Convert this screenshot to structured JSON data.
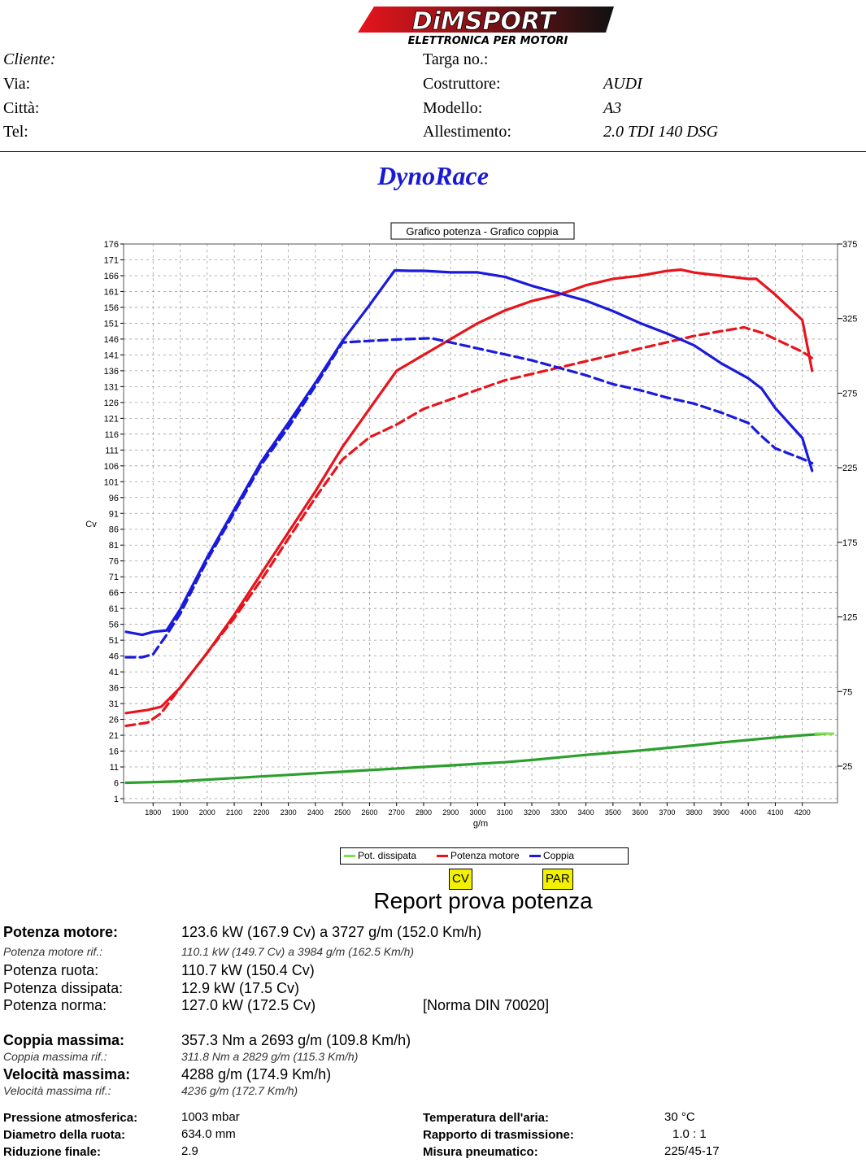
{
  "logo": {
    "brand": "DiMSPORT",
    "tagline": "ELETTRONICA PER MOTORI"
  },
  "header": {
    "left": [
      {
        "label": "Cliente:",
        "value": ""
      },
      {
        "label": "Via:",
        "value": ""
      },
      {
        "label": "Città:",
        "value": ""
      },
      {
        "label": "Tel:",
        "value": ""
      }
    ],
    "right": [
      {
        "label": "Targa no.:",
        "value": ""
      },
      {
        "label": "Costruttore:",
        "value": "AUDI"
      },
      {
        "label": "Modello:",
        "value": "A3"
      },
      {
        "label": "Allestimento:",
        "value": "2.0 TDI 140 DSG"
      }
    ]
  },
  "dyno_title": "DynoRace",
  "chart_data": {
    "type": "line",
    "title": "Grafico potenza - Grafico coppia",
    "xlabel": "g/m",
    "ylabel": "Cv",
    "xlim": [
      1700,
      4300
    ],
    "ylim": [
      1,
      176
    ],
    "y2lim": [
      0,
      375
    ],
    "xticks": [
      1800,
      1900,
      2000,
      2100,
      2200,
      2300,
      2400,
      2500,
      2600,
      2700,
      2800,
      2900,
      3000,
      3100,
      3200,
      3300,
      3400,
      3500,
      3600,
      3700,
      3800,
      3900,
      4000,
      4100,
      4200
    ],
    "yticks": [
      176,
      171,
      166,
      161,
      156,
      151,
      146,
      141,
      136,
      131,
      126,
      121,
      116,
      111,
      106,
      101,
      96,
      91,
      86,
      81,
      76,
      71,
      66,
      61,
      56,
      51,
      46,
      41,
      36,
      31,
      26,
      21,
      16,
      11,
      6,
      1
    ],
    "y2ticks": [
      375,
      325,
      275,
      225,
      175,
      125,
      75,
      25
    ],
    "grid": true,
    "legend": [
      "Pot. dissipata",
      "Potenza motore",
      "Coppia"
    ],
    "series": [
      {
        "name": "Pot. dissipata",
        "color": "#2ca02c",
        "axis": "left",
        "style": "solid",
        "x": [
          1700,
          1800,
          1900,
          2000,
          2100,
          2200,
          2300,
          2400,
          2500,
          2600,
          2700,
          2800,
          2900,
          3000,
          3100,
          3200,
          3300,
          3400,
          3500,
          3600,
          3700,
          3800,
          3900,
          4000,
          4100,
          4200,
          4288
        ],
        "y": [
          6,
          6.2,
          6.5,
          7,
          7.5,
          8,
          8.5,
          9,
          9.5,
          10,
          10.5,
          11,
          11.5,
          12,
          12.5,
          13.2,
          14,
          14.8,
          15.5,
          16.2,
          17,
          17.8,
          18.7,
          19.5,
          20.3,
          21,
          21.5
        ]
      },
      {
        "name": "Potenza motore",
        "color": "#e8141c",
        "axis": "left",
        "style": "solid",
        "x": [
          1700,
          1780,
          1830,
          1900,
          2000,
          2100,
          2200,
          2300,
          2400,
          2500,
          2600,
          2700,
          2800,
          2900,
          3000,
          3100,
          3200,
          3300,
          3400,
          3500,
          3600,
          3700,
          3750,
          3800,
          3900,
          4000,
          4030,
          4100,
          4200,
          4236
        ],
        "y": [
          28,
          29,
          30,
          36,
          47,
          59,
          72,
          85,
          98,
          112,
          124,
          136,
          141,
          146,
          151,
          155,
          158,
          160,
          163,
          165,
          166,
          167.5,
          167.9,
          167,
          166,
          165,
          165,
          160,
          152,
          136
        ]
      },
      {
        "name": "Potenza motore rif.",
        "color": "#e8141c",
        "axis": "left",
        "style": "dashed",
        "x": [
          1700,
          1780,
          1830,
          1900,
          2000,
          2100,
          2200,
          2300,
          2400,
          2500,
          2600,
          2700,
          2800,
          2900,
          3000,
          3100,
          3200,
          3300,
          3400,
          3500,
          3600,
          3700,
          3800,
          3900,
          3984,
          4050,
          4100,
          4200,
          4236
        ],
        "y": [
          24,
          25,
          28,
          36,
          47,
          58,
          70,
          83,
          96,
          108,
          115,
          119,
          124,
          127,
          130,
          133,
          135,
          137,
          139,
          141,
          143,
          145,
          147,
          148.5,
          149.7,
          148,
          146,
          142,
          140
        ]
      },
      {
        "name": "Coppia",
        "color": "#1a1adc",
        "axis": "right",
        "style": "solid",
        "x": [
          1700,
          1760,
          1800,
          1850,
          1900,
          2000,
          2100,
          2200,
          2300,
          2400,
          2500,
          2600,
          2693,
          2750,
          2800,
          2900,
          3000,
          3100,
          3200,
          3300,
          3400,
          3500,
          3600,
          3700,
          3800,
          3900,
          4000,
          4050,
          4100,
          4200,
          4236
        ],
        "y": [
          115,
          113,
          115,
          116,
          130,
          165,
          197,
          229,
          255,
          282,
          310,
          334,
          357.3,
          357,
          357,
          356,
          356,
          353,
          347,
          342,
          337,
          330,
          322,
          315,
          307,
          295,
          285,
          278,
          265,
          245,
          223
        ]
      },
      {
        "name": "Coppia rif.",
        "color": "#1a1adc",
        "axis": "right",
        "style": "dashed",
        "x": [
          1700,
          1760,
          1800,
          1850,
          1900,
          2000,
          2100,
          2200,
          2300,
          2400,
          2500,
          2600,
          2700,
          2829,
          2900,
          3000,
          3100,
          3200,
          3300,
          3400,
          3500,
          3600,
          3700,
          3800,
          3900,
          4000,
          4050,
          4100,
          4200,
          4236
        ],
        "y": [
          98,
          98,
          100,
          113,
          127,
          163,
          195,
          227,
          252,
          280,
          309,
          310,
          311,
          311.8,
          309,
          305,
          301,
          297,
          292,
          287,
          281,
          277,
          272,
          268,
          262,
          255,
          246,
          238,
          231,
          228
        ]
      }
    ]
  },
  "legend_labels": {
    "dissipata": "Pot. dissipata",
    "motore": "Potenza motore",
    "coppia": "Coppia"
  },
  "tags": {
    "cv": "CV",
    "par": "PAR"
  },
  "report": {
    "title": "Report prova potenza",
    "potenza_motore_label": "Potenza motore:",
    "potenza_motore": "123.6 kW (167.9 Cv) a 3727 g/m (152.0 Km/h)",
    "potenza_motore_rif_label": "Potenza motore rif.:",
    "potenza_motore_rif": "110.1 kW (149.7 Cv) a 3984 g/m (162.5 Km/h)",
    "potenza_ruota_label": "Potenza ruota:",
    "potenza_ruota": "110.7 kW (150.4 Cv)",
    "potenza_dissipata_label": "Potenza dissipata:",
    "potenza_dissipata": "12.9 kW (17.5 Cv)",
    "potenza_norma_label": "Potenza norma:",
    "potenza_norma": "127.0 kW (172.5 Cv)",
    "norma": "[Norma DIN 70020]",
    "coppia_label": "Coppia massima:",
    "coppia": "357.3 Nm a 2693 g/m (109.8 Km/h)",
    "coppia_rif_label": "Coppia massima rif.:",
    "coppia_rif": "311.8 Nm a 2829 g/m (115.3 Km/h)",
    "velocita_label": "Velocità massima:",
    "velocita": "4288 g/m (174.9 Km/h)",
    "velocita_rif_label": "Velocità massima rif.:",
    "velocita_rif": "4236 g/m (172.7 Km/h)",
    "pressione_label": "Pressione atmosferica:",
    "pressione": "1003 mbar",
    "diametro_label": "Diametro della ruota:",
    "diametro": "634.0 mm",
    "riduzione_label": "Riduzione finale:",
    "riduzione": "2.9",
    "temperatura_label": "Temperatura dell'aria:",
    "temperatura": "30 °C",
    "rapporto_label": "Rapporto di trasmissione:",
    "rapporto": "1.0 : 1",
    "pneumatico_label": "Misura pneumatico:",
    "pneumatico": "225/45-17"
  }
}
